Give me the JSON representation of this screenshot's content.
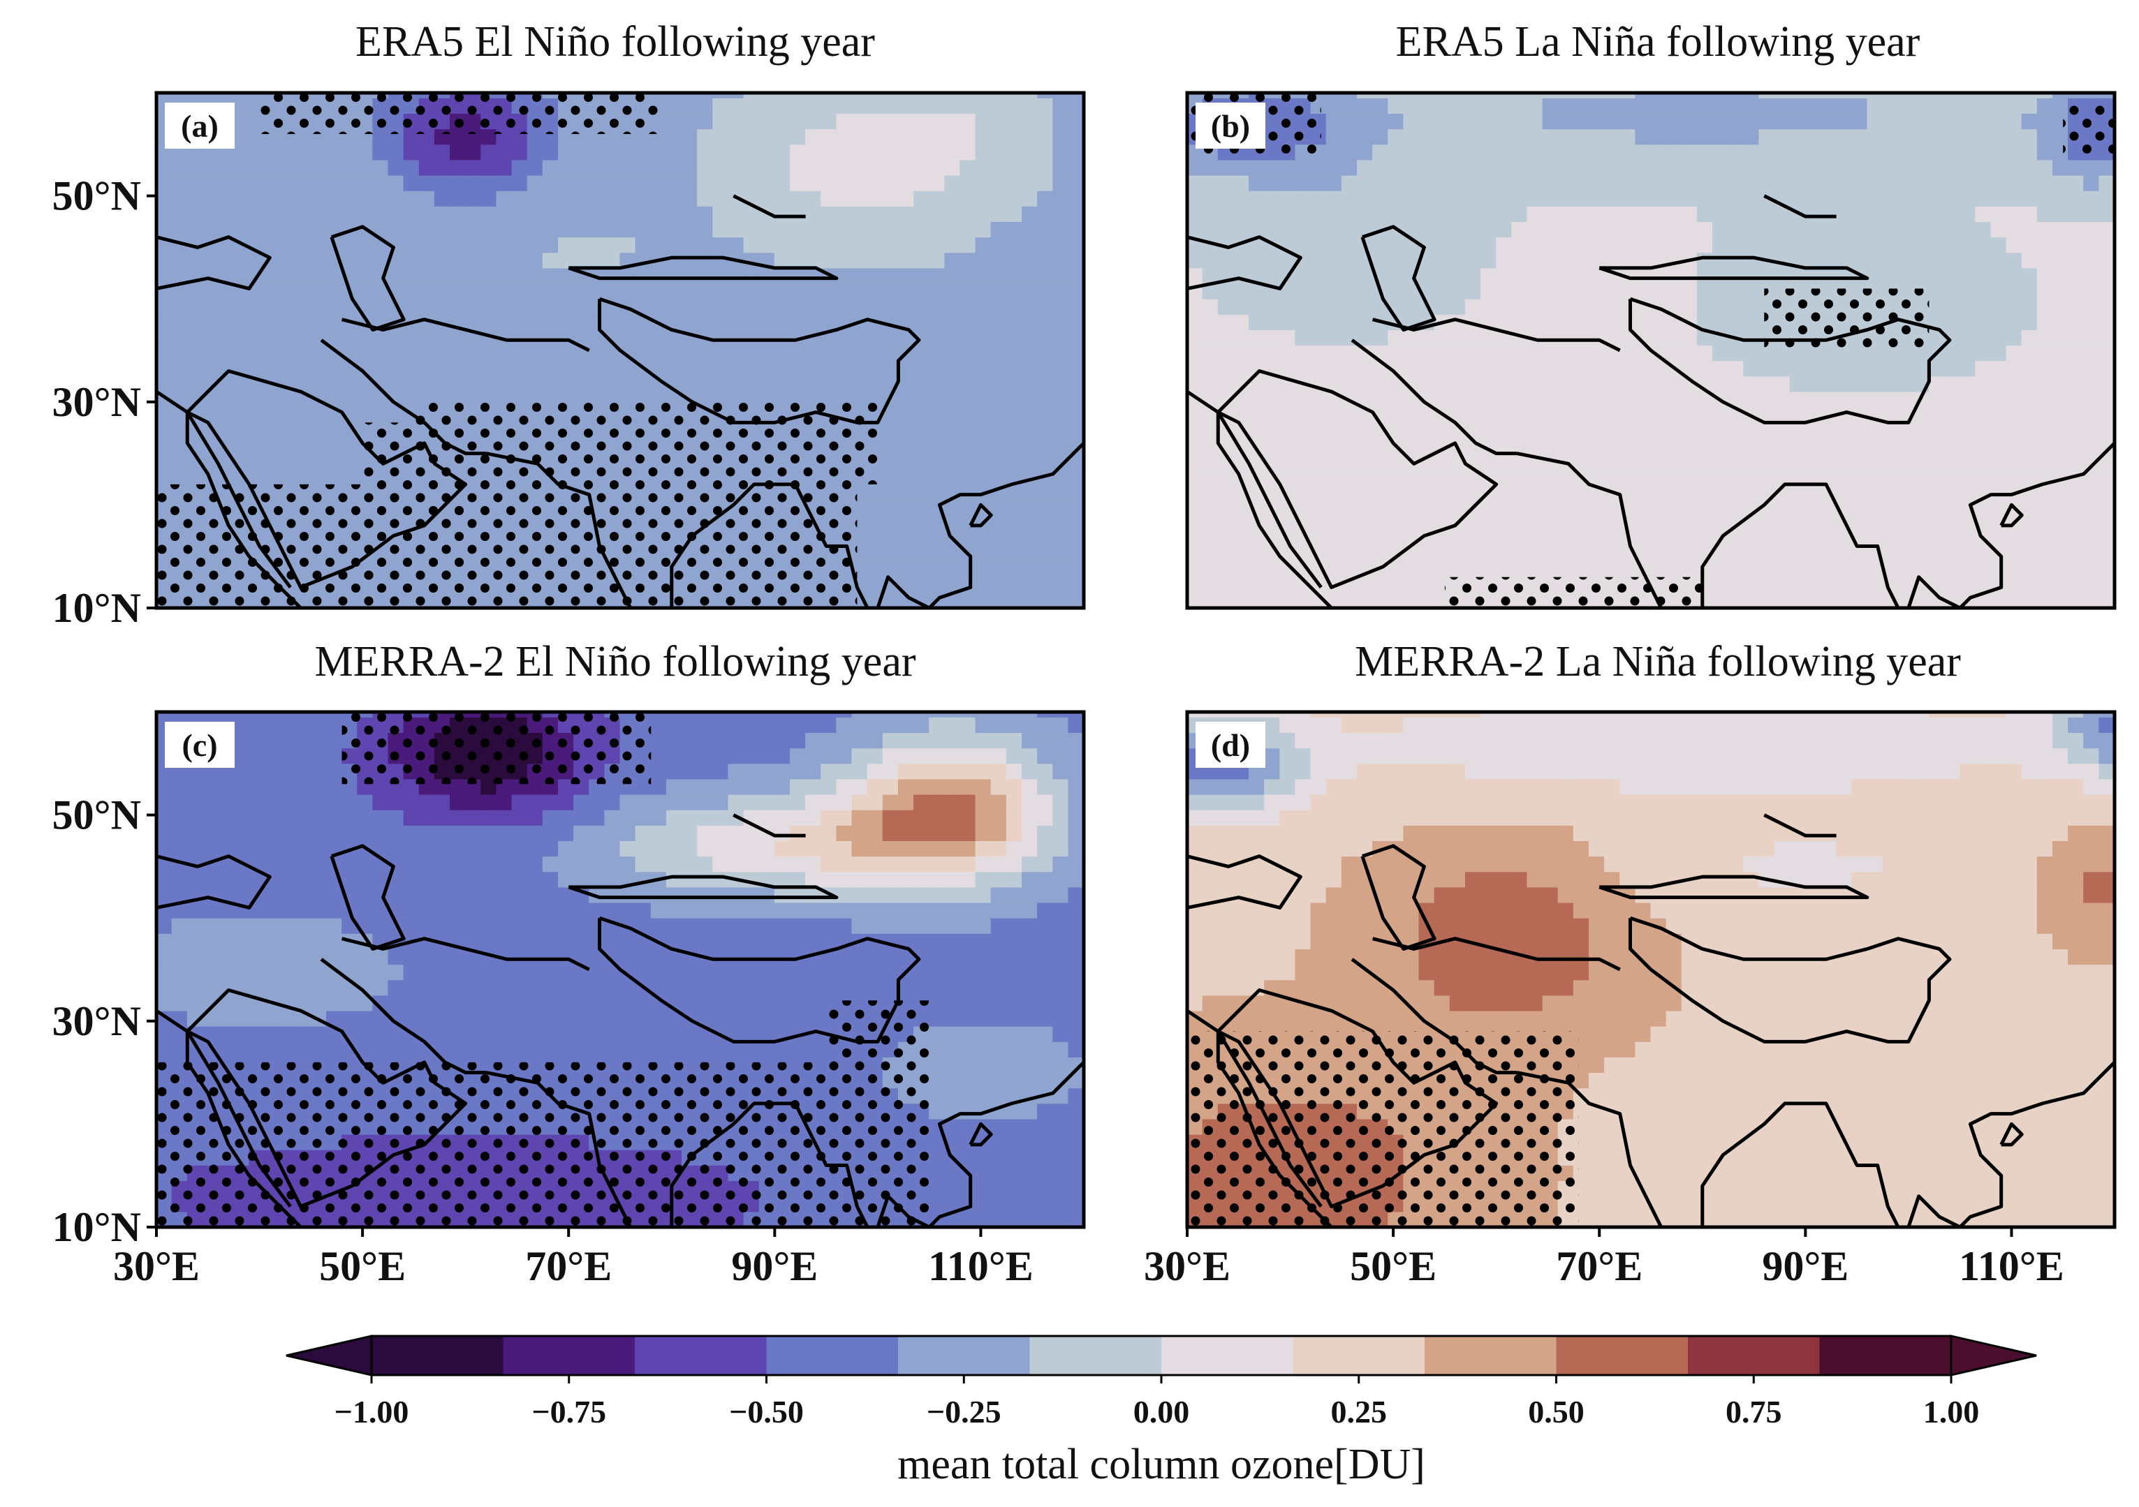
{
  "panels": [
    {
      "id": "a",
      "label": "(a)",
      "title": "ERA5 El Niño following year",
      "field": {
        "base": -0.18,
        "blobs": [
          [
            60,
            56,
            8,
            6,
            -0.55
          ],
          [
            98,
            53,
            9,
            6,
            0.3
          ],
          [
            108,
            56,
            6,
            5,
            0.15
          ],
          [
            70,
            45,
            10,
            4,
            0.02
          ],
          [
            60,
            18,
            30,
            10,
            -0.1
          ]
        ]
      },
      "stipple": [
        [
          40,
          79,
          56,
          61
        ],
        [
          50,
          60,
          10,
          28
        ],
        [
          30,
          98,
          10,
          22
        ],
        [
          55,
          100,
          22,
          30
        ]
      ],
      "show_lat_ticks": true,
      "show_lon_ticks": false
    },
    {
      "id": "b",
      "label": "(b)",
      "title": "ERA5 La Niña following year",
      "field": {
        "base": 0.02,
        "blobs": [
          [
            36,
            57,
            10,
            5,
            -0.45
          ],
          [
            118,
            56,
            5,
            5,
            -0.4
          ],
          [
            80,
            58,
            40,
            6,
            -0.22
          ],
          [
            45,
            46,
            10,
            7,
            -0.18
          ],
          [
            95,
            40,
            12,
            6,
            -0.18
          ],
          [
            72,
            40,
            6,
            4,
            0.05
          ]
        ]
      },
      "stipple": [
        [
          30,
          43,
          54,
          61
        ],
        [
          86,
          102,
          35,
          41
        ],
        [
          115,
          120,
          54,
          59
        ],
        [
          55,
          80,
          10,
          13
        ]
      ],
      "show_lat_ticks": false,
      "show_lon_ticks": false
    },
    {
      "id": "c",
      "label": "(c)",
      "title": "MERRA-2 El Niño following year",
      "field": {
        "base": -0.4,
        "blobs": [
          [
            62,
            56,
            10,
            6,
            -0.6
          ],
          [
            107,
            51,
            10,
            7,
            0.85
          ],
          [
            92,
            47,
            18,
            5,
            0.55
          ],
          [
            60,
            13,
            30,
            6,
            -0.25
          ],
          [
            110,
            25,
            15,
            8,
            0.1
          ],
          [
            40,
            35,
            15,
            6,
            0.15
          ]
        ]
      },
      "stipple": [
        [
          48,
          78,
          53,
          61
        ],
        [
          30,
          105,
          10,
          26
        ],
        [
          95,
          105,
          26,
          32
        ]
      ],
      "show_lat_ticks": true,
      "show_lon_ticks": true
    },
    {
      "id": "d",
      "label": "(d)",
      "title": "MERRA-2 La Niña following year",
      "field": {
        "base": 0.3,
        "blobs": [
          [
            33,
            55,
            8,
            5,
            -0.7
          ],
          [
            120,
            59,
            6,
            5,
            -0.6
          ],
          [
            80,
            57,
            35,
            5,
            -0.3
          ],
          [
            61,
            38,
            12,
            9,
            0.35
          ],
          [
            118,
            43,
            5,
            5,
            0.25
          ],
          [
            40,
            15,
            18,
            12,
            0.3
          ],
          [
            90,
            45,
            20,
            5,
            -0.15
          ]
        ]
      },
      "stipple": [
        [
          30,
          68,
          10,
          29
        ]
      ],
      "show_lat_ticks": false,
      "show_lon_ticks": true
    }
  ],
  "axes": {
    "lat_ticks": [
      {
        "value": 10,
        "label": "10°N"
      },
      {
        "value": 30,
        "label": "30°N"
      },
      {
        "value": 50,
        "label": "50°N"
      }
    ],
    "lon_ticks": [
      {
        "value": 30,
        "label": "30°E"
      },
      {
        "value": 50,
        "label": "50°E"
      },
      {
        "value": 70,
        "label": "70°E"
      },
      {
        "value": 90,
        "label": "90°E"
      },
      {
        "value": 110,
        "label": "110°E"
      }
    ],
    "lon_range": [
      30,
      120
    ],
    "lat_range": [
      10,
      60
    ]
  },
  "colorbar": {
    "ticks": [
      {
        "value": -1.0,
        "label": "−1.00"
      },
      {
        "value": -0.75,
        "label": "−0.75"
      },
      {
        "value": -0.5,
        "label": "−0.50"
      },
      {
        "value": -0.25,
        "label": "−0.25"
      },
      {
        "value": 0.0,
        "label": "0.00"
      },
      {
        "value": 0.25,
        "label": "0.25"
      },
      {
        "value": 0.5,
        "label": "0.50"
      },
      {
        "value": 0.75,
        "label": "0.75"
      },
      {
        "value": 1.0,
        "label": "1.00"
      }
    ],
    "label": "mean total column ozone[DU]",
    "range": [
      -1.0,
      1.0
    ],
    "colors": [
      "#2b0a3d",
      "#4a1b7a",
      "#5e45b0",
      "#6a78c6",
      "#8fa5cf",
      "#bccbd6",
      "#e3dde2",
      "#e8d2c6",
      "#d4a489",
      "#b66a55",
      "#8e3540",
      "#4c0e2e"
    ]
  },
  "coastlines": {
    "black_sea": [
      [
        28,
        41
      ],
      [
        30,
        46
      ],
      [
        34,
        45
      ],
      [
        37,
        46
      ],
      [
        41,
        44
      ],
      [
        39,
        41
      ],
      [
        35,
        42
      ],
      [
        30,
        41
      ],
      [
        28,
        41
      ]
    ],
    "caspian": [
      [
        47,
        46
      ],
      [
        50,
        47
      ],
      [
        53,
        45
      ],
      [
        52,
        42
      ],
      [
        54,
        38
      ],
      [
        51,
        37
      ],
      [
        49,
        40
      ],
      [
        48,
        43
      ],
      [
        47,
        46
      ]
    ],
    "arabia": [
      [
        33,
        29
      ],
      [
        35,
        28
      ],
      [
        39,
        22
      ],
      [
        43,
        14
      ],
      [
        44,
        12
      ],
      [
        49,
        14
      ],
      [
        53,
        17
      ],
      [
        56,
        18
      ],
      [
        60,
        22
      ],
      [
        57,
        24
      ],
      [
        56,
        26
      ],
      [
        52,
        24
      ],
      [
        50,
        26
      ],
      [
        48,
        29
      ],
      [
        44,
        31
      ],
      [
        37,
        33
      ],
      [
        33,
        29
      ]
    ],
    "red_sea": [
      [
        33,
        29
      ],
      [
        36,
        24
      ],
      [
        38,
        20
      ],
      [
        40,
        16
      ],
      [
        43,
        12
      ]
    ],
    "africa": [
      [
        30,
        31
      ],
      [
        33,
        29
      ],
      [
        33,
        26
      ],
      [
        35,
        23
      ],
      [
        37,
        18
      ],
      [
        39,
        15
      ],
      [
        42,
        12
      ],
      [
        43,
        11
      ],
      [
        44,
        10
      ]
    ],
    "india": [
      [
        62,
        25
      ],
      [
        67,
        24
      ],
      [
        69,
        22
      ],
      [
        72,
        21
      ],
      [
        73,
        16
      ],
      [
        75,
        12
      ],
      [
        77,
        8
      ],
      [
        80,
        10
      ],
      [
        80,
        14
      ],
      [
        82,
        17
      ],
      [
        86,
        20
      ],
      [
        88,
        22
      ],
      [
        90,
        22
      ],
      [
        92,
        22
      ],
      [
        94,
        18
      ],
      [
        95,
        16
      ],
      [
        97,
        16
      ],
      [
        98,
        12
      ],
      [
        99,
        10
      ]
    ],
    "indochina": [
      [
        100,
        10
      ],
      [
        101,
        13
      ],
      [
        103,
        11
      ],
      [
        105,
        10
      ],
      [
        106,
        11
      ],
      [
        109,
        12
      ],
      [
        109,
        15
      ],
      [
        107,
        17
      ],
      [
        106,
        20
      ],
      [
        108,
        21
      ],
      [
        110,
        21
      ],
      [
        113,
        22
      ],
      [
        117,
        23
      ],
      [
        120,
        26
      ],
      [
        121,
        29
      ],
      [
        122,
        31
      ]
    ],
    "hainan": [
      [
        109,
        18
      ],
      [
        110,
        20
      ],
      [
        111,
        19
      ],
      [
        110,
        18
      ],
      [
        109,
        18
      ]
    ],
    "tibet": [
      [
        73,
        40
      ],
      [
        76,
        39
      ],
      [
        80,
        37
      ],
      [
        84,
        36
      ],
      [
        88,
        36
      ],
      [
        92,
        36
      ],
      [
        96,
        37
      ],
      [
        99,
        38
      ],
      [
        103,
        37
      ],
      [
        104,
        36
      ],
      [
        102,
        34
      ],
      [
        102,
        32
      ],
      [
        100,
        28
      ],
      [
        98,
        28
      ],
      [
        94,
        29
      ],
      [
        90,
        28
      ],
      [
        86,
        28
      ],
      [
        82,
        30
      ],
      [
        79,
        32
      ],
      [
        75,
        35
      ],
      [
        73,
        37
      ],
      [
        73,
        40
      ]
    ],
    "tianshan": [
      [
        70,
        43
      ],
      [
        75,
        43
      ],
      [
        80,
        44
      ],
      [
        85,
        44
      ],
      [
        90,
        43
      ],
      [
        94,
        43
      ],
      [
        96,
        42
      ],
      [
        90,
        42
      ],
      [
        84,
        42
      ],
      [
        78,
        42
      ],
      [
        73,
        42
      ],
      [
        70,
        43
      ]
    ],
    "altai": [
      [
        86,
        50
      ],
      [
        88,
        49
      ],
      [
        90,
        48
      ],
      [
        93,
        48
      ]
    ],
    "zagros": [
      [
        46,
        36
      ],
      [
        50,
        33
      ],
      [
        53,
        30
      ],
      [
        56,
        28
      ],
      [
        58,
        26
      ],
      [
        60,
        25
      ],
      [
        62,
        25
      ]
    ],
    "iran_n": [
      [
        48,
        38
      ],
      [
        52,
        37
      ],
      [
        56,
        38
      ],
      [
        60,
        37
      ],
      [
        64,
        36
      ],
      [
        68,
        36
      ],
      [
        70,
        36
      ],
      [
        72,
        35
      ]
    ]
  }
}
